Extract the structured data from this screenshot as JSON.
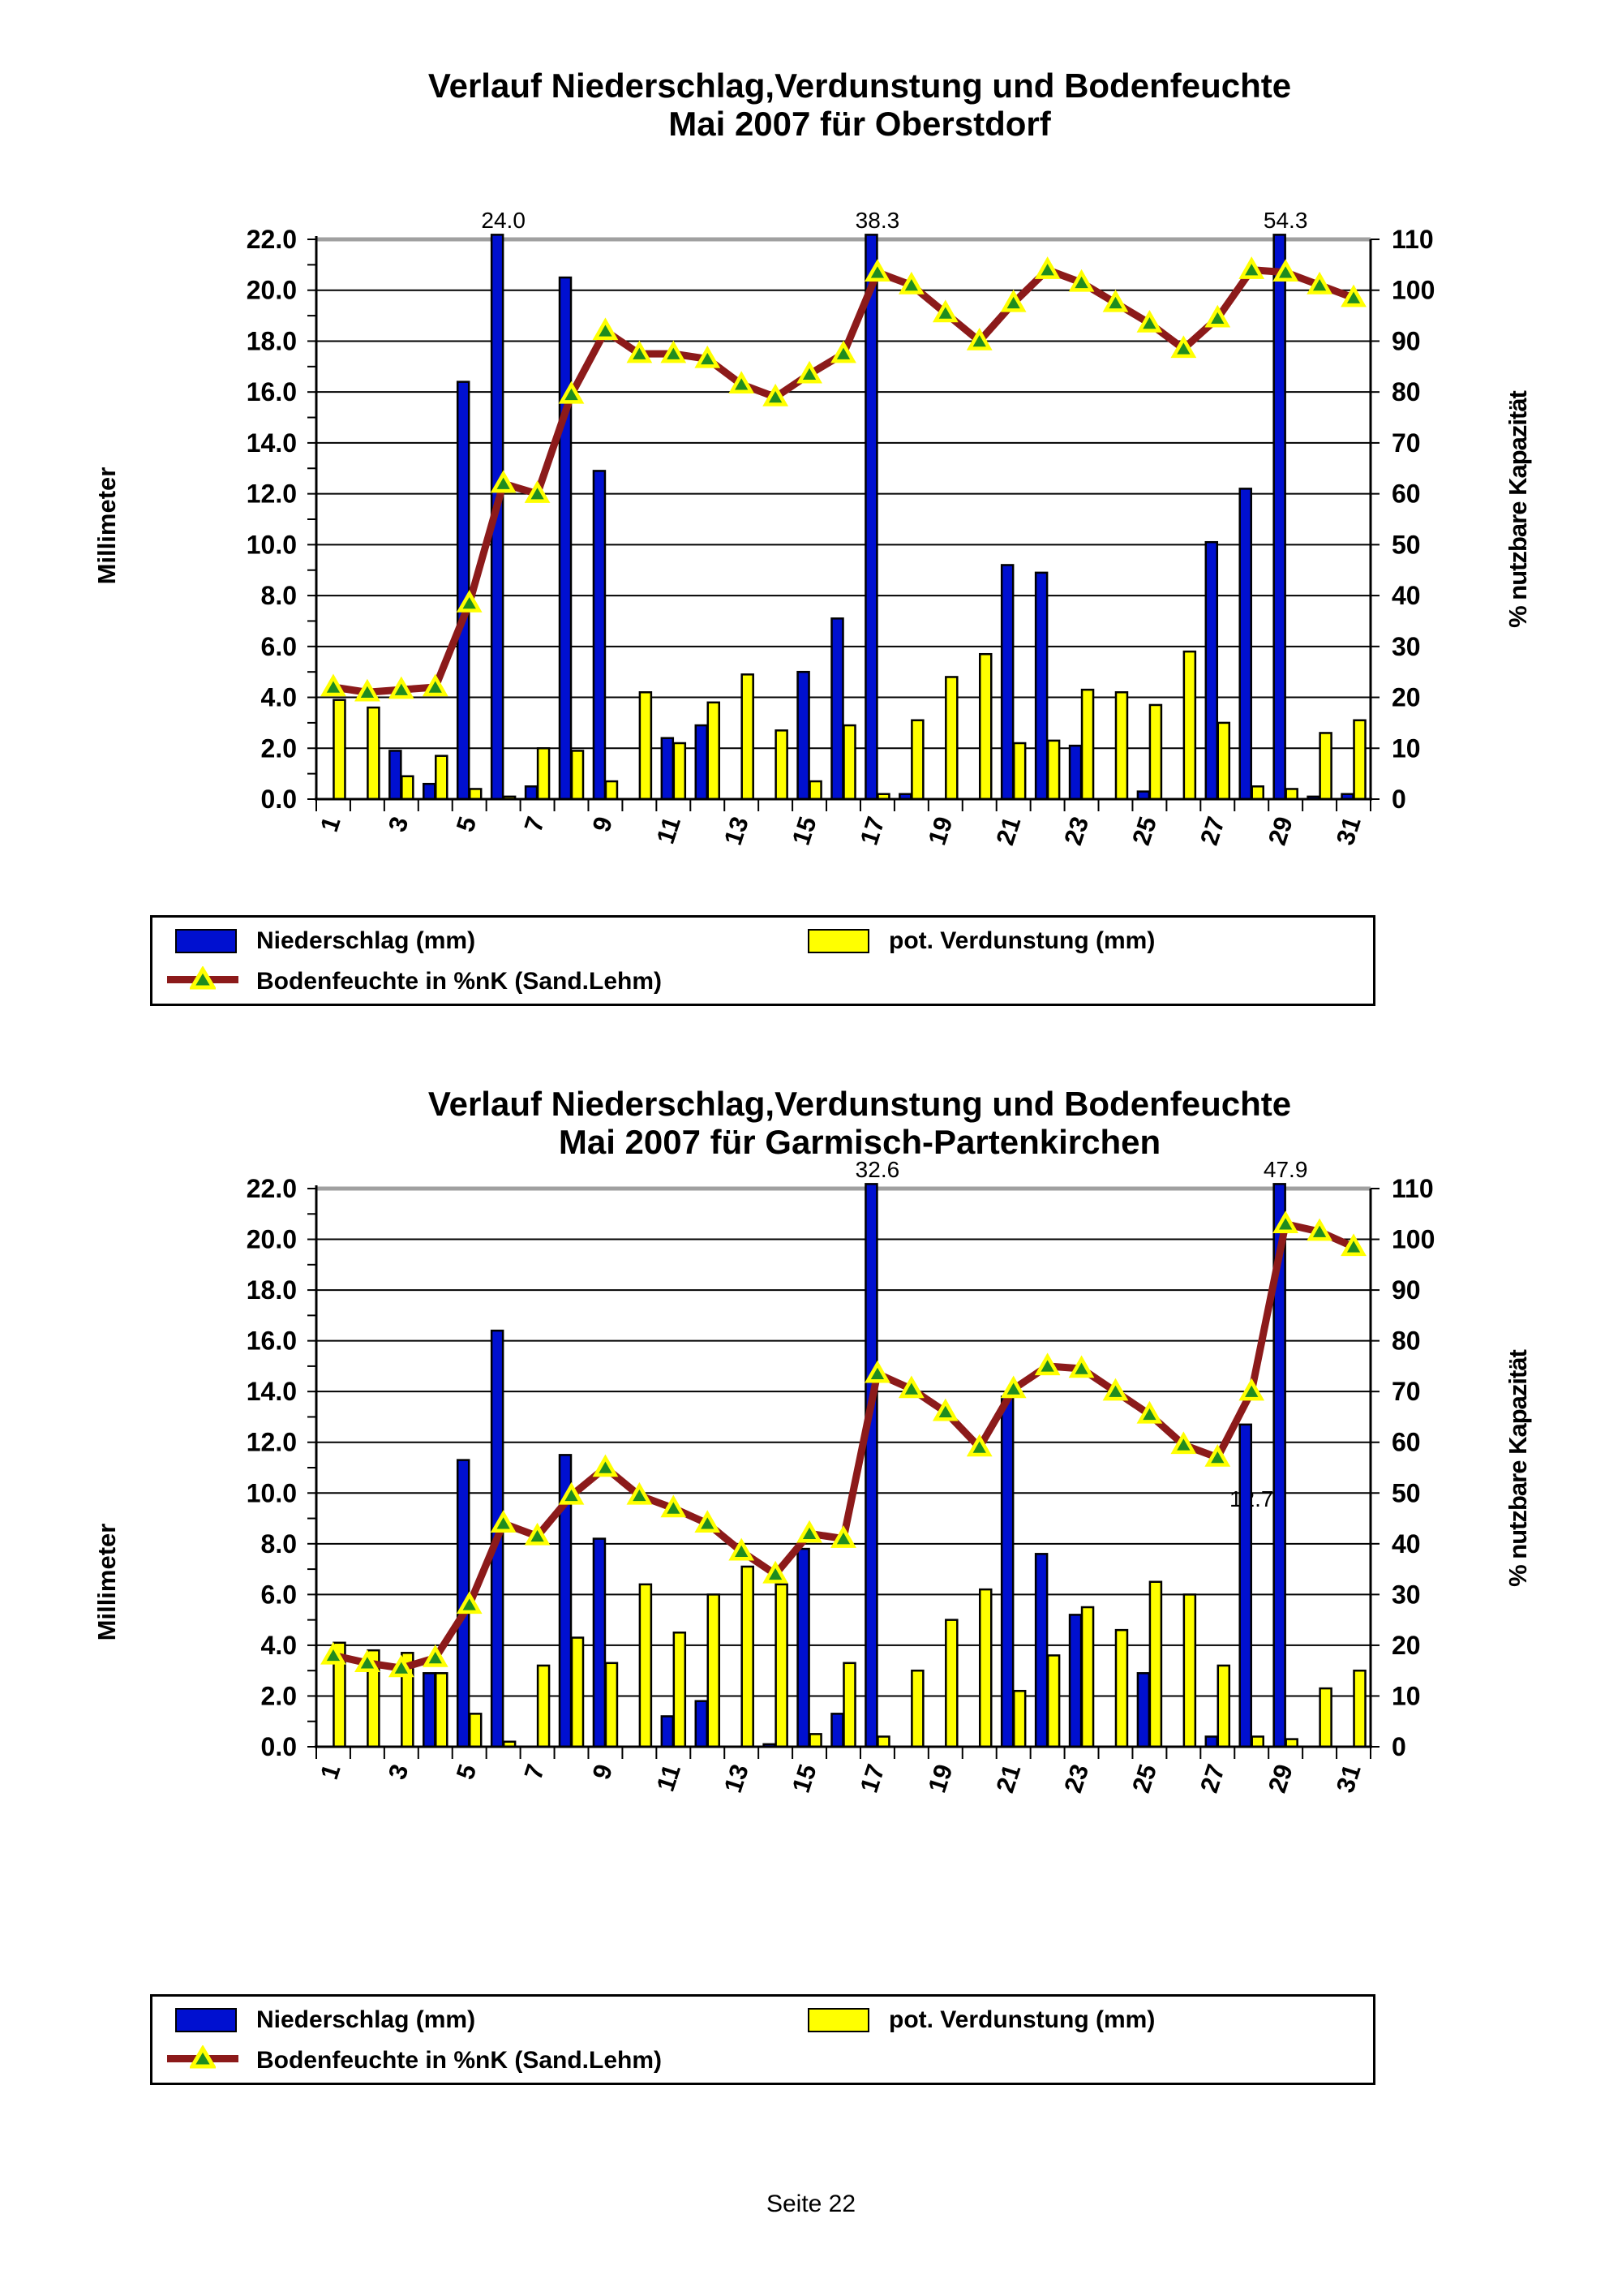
{
  "page": {
    "footer": "Seite 22",
    "background": "#ffffff"
  },
  "colors": {
    "niederschlag": "#0010d0",
    "verdunstung": "#ffff00",
    "bodenfeuchte_line": "#8c1a1a",
    "marker_fill": "#1f8c1f",
    "marker_stroke": "#ffff00",
    "grid": "#000000",
    "top_grid": "#a0a0a0"
  },
  "chart_data": [
    {
      "type": "bar",
      "title_line1": "Verlauf Niederschlag,Verdunstung und Bodenfeuchte",
      "title_line2": "Mai 2007 für Oberstdorf",
      "ylabel_left": "Millimeter",
      "ylabel_right": "% nutzbare Kapazität",
      "ylim_left": [
        0,
        22
      ],
      "ylim_right": [
        0,
        110
      ],
      "grid_step_mm": 2,
      "left_tick_labels": [
        "22.0",
        "20.0",
        "18.0",
        "16.0",
        "14.0",
        "12.0",
        "10.0",
        "8.0",
        "6.0",
        "4.0",
        "2.0",
        "0.0"
      ],
      "right_tick_labels": [
        "110",
        "100",
        "90",
        "80",
        "70",
        "60",
        "50",
        "40",
        "30",
        "20",
        "10",
        "0"
      ],
      "x_tick_labels": [
        "1",
        "3",
        "5",
        "7",
        "9",
        "11",
        "13",
        "15",
        "17",
        "19",
        "21",
        "23",
        "25",
        "27",
        "29",
        "31"
      ],
      "categories": [
        1,
        2,
        3,
        4,
        5,
        6,
        7,
        8,
        9,
        10,
        11,
        12,
        13,
        14,
        15,
        16,
        17,
        18,
        19,
        20,
        21,
        22,
        23,
        24,
        25,
        26,
        27,
        28,
        29,
        30,
        31
      ],
      "series": [
        {
          "name": "Niederschlag (mm)",
          "type": "bar",
          "axis": "left",
          "values": [
            0,
            0,
            1.9,
            0.6,
            16.4,
            24.0,
            0.5,
            20.5,
            12.9,
            0,
            2.4,
            2.9,
            0,
            0,
            5.0,
            7.1,
            38.3,
            0.2,
            0,
            0,
            9.2,
            8.9,
            2.1,
            0,
            0.3,
            0,
            10.1,
            12.2,
            54.3,
            0.1,
            0.2
          ]
        },
        {
          "name": "pot. Verdunstung (mm)",
          "type": "bar",
          "axis": "left",
          "values": [
            3.9,
            3.6,
            0.9,
            1.7,
            0.4,
            0.1,
            2.0,
            1.9,
            0.7,
            4.2,
            2.2,
            3.8,
            4.9,
            2.7,
            0.7,
            2.9,
            0.2,
            3.1,
            4.8,
            5.7,
            2.2,
            2.3,
            4.3,
            4.2,
            3.7,
            5.8,
            3.0,
            0.5,
            0.4,
            2.6,
            3.1
          ]
        },
        {
          "name": "Bodenfeuchte in %nK (Sand.Lehm)",
          "type": "line",
          "axis": "right",
          "values": [
            22,
            21,
            21.5,
            22,
            38.5,
            62,
            60,
            79.5,
            92,
            87.5,
            87.5,
            86.5,
            81.5,
            79,
            83.5,
            87.5,
            103.5,
            101,
            95.5,
            90,
            97.5,
            104,
            101.5,
            97.5,
            93.5,
            88.5,
            94.5,
            104,
            103.5,
            101,
            98.5
          ]
        }
      ],
      "annotations": [
        {
          "day": 6,
          "text": "24.0",
          "inside": false
        },
        {
          "day": 17,
          "text": "38.3",
          "inside": false
        },
        {
          "day": 29,
          "text": "54.3",
          "inside": false
        }
      ]
    },
    {
      "type": "bar",
      "title_line1": "Verlauf Niederschlag,Verdunstung und Bodenfeuchte",
      "title_line2": "Mai 2007 für Garmisch-Partenkirchen",
      "ylabel_left": "Millimeter",
      "ylabel_right": "% nutzbare Kapazität",
      "ylim_left": [
        0,
        22
      ],
      "ylim_right": [
        0,
        110
      ],
      "grid_step_mm": 2,
      "left_tick_labels": [
        "22.0",
        "20.0",
        "18.0",
        "16.0",
        "14.0",
        "12.0",
        "10.0",
        "8.0",
        "6.0",
        "4.0",
        "2.0",
        "0.0"
      ],
      "right_tick_labels": [
        "110",
        "100",
        "90",
        "80",
        "70",
        "60",
        "50",
        "40",
        "30",
        "20",
        "10",
        "0"
      ],
      "x_tick_labels": [
        "1",
        "3",
        "5",
        "7",
        "9",
        "11",
        "13",
        "15",
        "17",
        "19",
        "21",
        "23",
        "25",
        "27",
        "29",
        "31"
      ],
      "categories": [
        1,
        2,
        3,
        4,
        5,
        6,
        7,
        8,
        9,
        10,
        11,
        12,
        13,
        14,
        15,
        16,
        17,
        18,
        19,
        20,
        21,
        22,
        23,
        24,
        25,
        26,
        27,
        28,
        29,
        30,
        31
      ],
      "series": [
        {
          "name": "Niederschlag (mm)",
          "type": "bar",
          "axis": "left",
          "values": [
            0,
            0,
            0,
            2.9,
            11.3,
            16.4,
            0,
            11.5,
            8.2,
            0,
            1.2,
            1.8,
            0,
            0.1,
            7.8,
            1.3,
            32.6,
            0,
            0,
            0,
            13.8,
            7.6,
            5.2,
            0,
            2.9,
            0,
            0.4,
            12.7,
            47.9,
            0,
            0
          ]
        },
        {
          "name": "pot. Verdunstung (mm)",
          "type": "bar",
          "axis": "left",
          "values": [
            4.1,
            3.8,
            3.7,
            2.9,
            1.3,
            0.2,
            3.2,
            4.3,
            3.3,
            6.4,
            4.5,
            6.0,
            7.1,
            6.4,
            0.5,
            3.3,
            0.4,
            3.0,
            5.0,
            6.2,
            2.2,
            3.6,
            5.5,
            4.6,
            6.5,
            6.0,
            3.2,
            0.4,
            0.3,
            2.3,
            3.0
          ]
        },
        {
          "name": "Bodenfeuchte in %nK (Sand.Lehm)",
          "type": "line",
          "axis": "right",
          "values": [
            18,
            16.5,
            15.5,
            17.5,
            28,
            44,
            41.5,
            49.5,
            55,
            49.5,
            47,
            44,
            38.5,
            34,
            42,
            41,
            73.5,
            70.5,
            66,
            59,
            70.5,
            75,
            74.5,
            70,
            65.5,
            59.5,
            57,
            70,
            103,
            101.5,
            98.5
          ]
        }
      ],
      "annotations": [
        {
          "day": 17,
          "text": "32.6",
          "inside": false
        },
        {
          "day": 28,
          "text": "12.7",
          "inside": true
        },
        {
          "day": 29,
          "text": "47.9",
          "inside": false
        }
      ]
    }
  ]
}
